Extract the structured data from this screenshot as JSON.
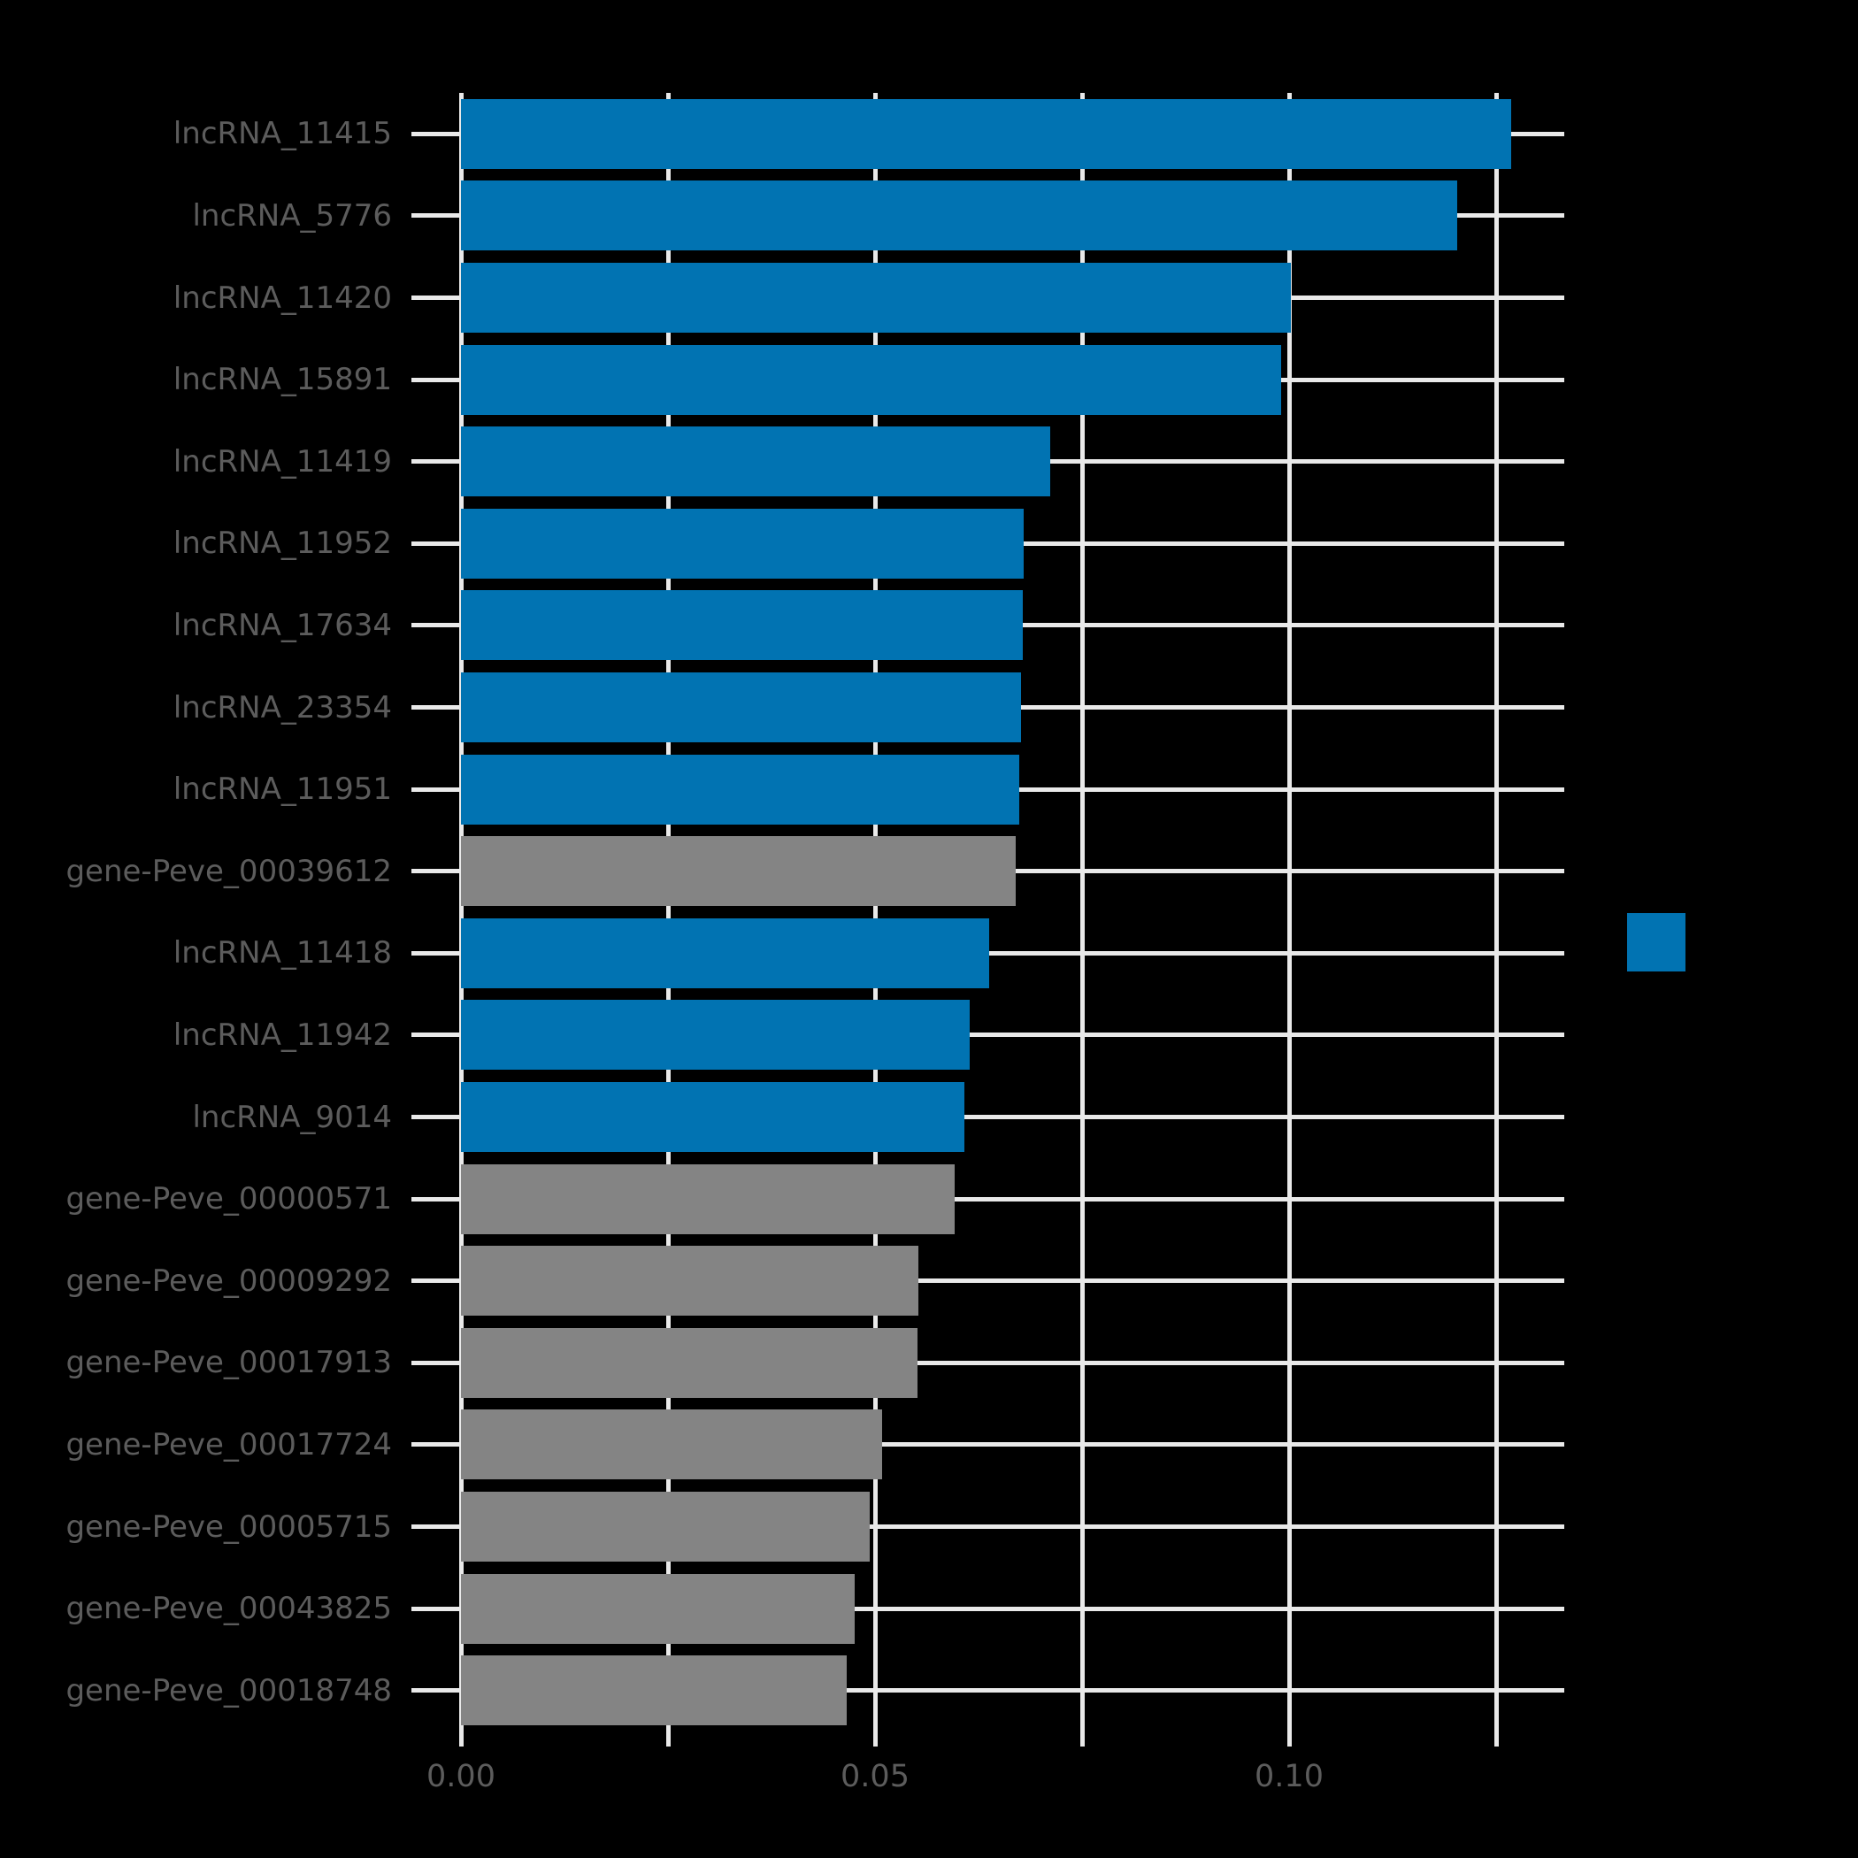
{
  "chart_data": {
    "type": "bar",
    "orientation": "horizontal",
    "title": "",
    "xlabel": "",
    "ylabel": "",
    "grid": true,
    "legend_position": "center-right",
    "xlim": [
      0,
      0.1332
    ],
    "categories": [
      "lncRNA_11415",
      "lncRNA_5776",
      "lncRNA_11420",
      "lncRNA_15891",
      "lncRNA_11419",
      "lncRNA_11952",
      "lncRNA_17634",
      "lncRNA_23354",
      "lncRNA_11951",
      "gene-Peve_00039612",
      "lncRNA_11418",
      "lncRNA_11942",
      "lncRNA_9014",
      "gene-Peve_00000571",
      "gene-Peve_00009292",
      "gene-Peve_00017913",
      "gene-Peve_00017724",
      "gene-Peve_00005715",
      "gene-Peve_00043825",
      "gene-Peve_00018748"
    ],
    "values": [
      0.1268,
      0.1203,
      0.1002,
      0.099,
      0.0712,
      0.0679,
      0.0678,
      0.0676,
      0.0674,
      0.067,
      0.0638,
      0.0614,
      0.0608,
      0.0596,
      0.0552,
      0.0551,
      0.0509,
      0.0494,
      0.0475,
      0.0466
    ],
    "groups": [
      "lncRNA",
      "lncRNA",
      "lncRNA",
      "lncRNA",
      "lncRNA",
      "lncRNA",
      "lncRNA",
      "lncRNA",
      "lncRNA",
      "gene",
      "lncRNA",
      "lncRNA",
      "lncRNA",
      "gene",
      "gene",
      "gene",
      "gene",
      "gene",
      "gene",
      "gene"
    ],
    "x_ticks": [
      {
        "value": 0.0,
        "label": "0.00"
      },
      {
        "value": 0.025,
        "label": ""
      },
      {
        "value": 0.05,
        "label": "0.05"
      },
      {
        "value": 0.075,
        "label": ""
      },
      {
        "value": 0.1,
        "label": "0.10"
      },
      {
        "value": 0.125,
        "label": ""
      }
    ]
  },
  "legend": {
    "swatch_color": "#0173b2",
    "label": ""
  },
  "colors": {
    "background": "#000000",
    "bar_lncRNA": "#0173b2",
    "bar_gene": "#848484",
    "gridline": "#e9e9e9",
    "text": "#5c5c5c"
  }
}
